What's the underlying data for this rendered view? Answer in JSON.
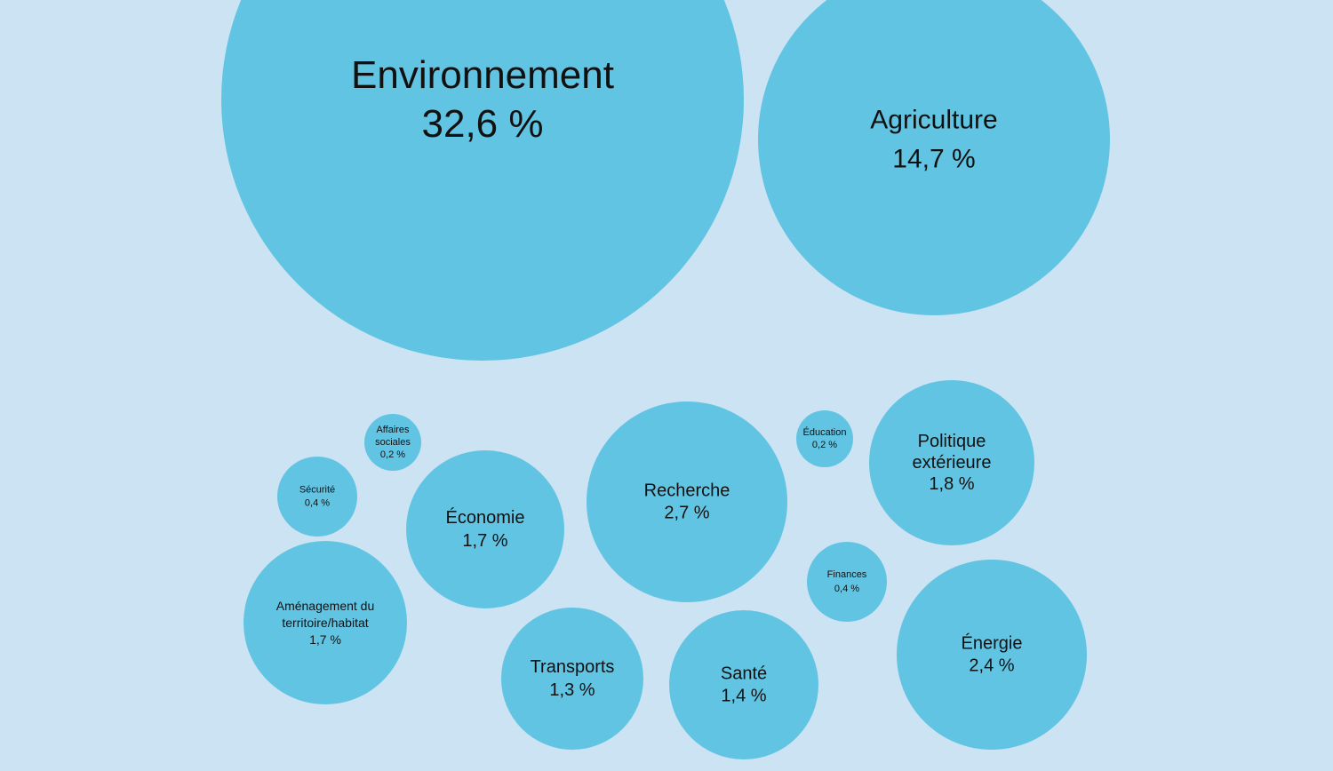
{
  "chart_data": {
    "type": "bubble",
    "unit": "%",
    "colors": {
      "background": "#cce3f4",
      "bubble": "#62c4e3",
      "text": "#111111"
    },
    "series": [
      {
        "name": "Environnement",
        "lines": [
          "Environnement"
        ],
        "value": 32.6,
        "value_label": "32,6 %"
      },
      {
        "name": "Agriculture",
        "lines": [
          "Agriculture"
        ],
        "value": 14.7,
        "value_label": "14,7 %"
      },
      {
        "name": "Recherche",
        "lines": [
          "Recherche"
        ],
        "value": 2.7,
        "value_label": "2,7 %"
      },
      {
        "name": "Énergie",
        "lines": [
          "Énergie"
        ],
        "value": 2.4,
        "value_label": "2,4 %"
      },
      {
        "name": "Politique extérieure",
        "lines": [
          "Politique",
          "extérieure"
        ],
        "value": 1.8,
        "value_label": "1,8 %"
      },
      {
        "name": "Économie",
        "lines": [
          "Économie"
        ],
        "value": 1.7,
        "value_label": "1,7 %"
      },
      {
        "name": "Aménagement du territoire/habitat",
        "lines": [
          "Aménagement du",
          "territoire/habitat"
        ],
        "value": 1.7,
        "value_label": "1,7 %"
      },
      {
        "name": "Santé",
        "lines": [
          "Santé"
        ],
        "value": 1.4,
        "value_label": "1,4 %"
      },
      {
        "name": "Transports",
        "lines": [
          "Transports"
        ],
        "value": 1.3,
        "value_label": "1,3 %"
      },
      {
        "name": "Sécurité",
        "lines": [
          "Sécurité"
        ],
        "value": 0.4,
        "value_label": "0,4 %"
      },
      {
        "name": "Finances",
        "lines": [
          "Finances"
        ],
        "value": 0.4,
        "value_label": "0,4 %"
      },
      {
        "name": "Affaires sociales",
        "lines": [
          "Affaires",
          "sociales"
        ],
        "value": 0.2,
        "value_label": "0,2 %"
      },
      {
        "name": "Éducation",
        "lines": [
          "Éducation"
        ],
        "value": 0.2,
        "value_label": "0,2 %"
      }
    ]
  }
}
